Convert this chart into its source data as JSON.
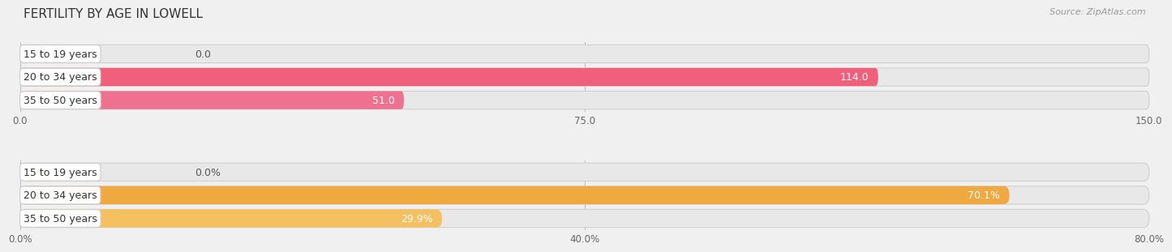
{
  "title": "FERTILITY BY AGE IN LOWELL",
  "source": "Source: ZipAtlas.com",
  "chart1": {
    "categories": [
      "15 to 19 years",
      "20 to 34 years",
      "35 to 50 years"
    ],
    "values": [
      0.0,
      114.0,
      51.0
    ],
    "max_val": 150.0,
    "tick_vals": [
      0.0,
      75.0,
      150.0
    ],
    "tick_labels": [
      "0.0",
      "75.0",
      "150.0"
    ],
    "bar_colors": [
      "#f093aa",
      "#f0607a",
      "#f07090"
    ],
    "bar_bg_color": "#e8e8e8",
    "zero_bar_color": "#f5aabb"
  },
  "chart2": {
    "categories": [
      "15 to 19 years",
      "20 to 34 years",
      "35 to 50 years"
    ],
    "values": [
      0.0,
      70.1,
      29.9
    ],
    "max_val": 80.0,
    "tick_vals": [
      0.0,
      40.0,
      80.0
    ],
    "tick_labels": [
      "0.0%",
      "40.0%",
      "80.0%"
    ],
    "bar_colors": [
      "#f5c888",
      "#f0a840",
      "#f5c060"
    ],
    "bar_bg_color": "#e8e8e8",
    "zero_bar_color": "#f5d8a8"
  },
  "bar_height": 0.78,
  "label_fontsize": 9,
  "category_fontsize": 9,
  "tick_fontsize": 8.5,
  "title_fontsize": 11,
  "fig_bg": "#f0f0f0"
}
